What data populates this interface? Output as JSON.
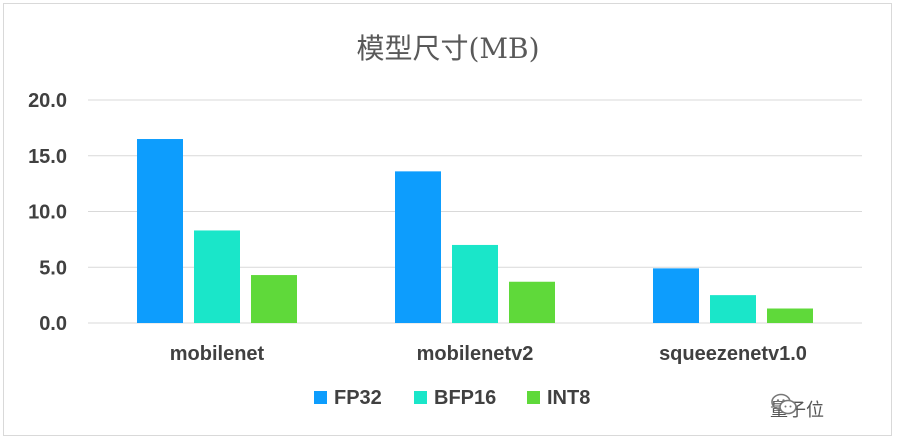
{
  "chart_data": {
    "type": "bar",
    "title": "模型尺寸(MB)",
    "categories": [
      "mobilenet",
      "mobilenetv2",
      "squeezenetv1.0"
    ],
    "series": [
      {
        "name": "FP32",
        "color": "#0d9dfd",
        "values": [
          16.5,
          13.6,
          4.9
        ]
      },
      {
        "name": "BFP16",
        "color": "#1ae6c9",
        "values": [
          8.3,
          7.0,
          2.5
        ]
      },
      {
        "name": "INT8",
        "color": "#5fd93a",
        "values": [
          4.3,
          3.7,
          1.3
        ]
      }
    ],
    "ylim": [
      0,
      20
    ],
    "yticks": [
      "0.0",
      "5.0",
      "10.0",
      "15.0",
      "20.0"
    ],
    "ytick_values": [
      0,
      5,
      10,
      15,
      20
    ],
    "grid": true,
    "legend_position": "bottom"
  },
  "watermark": {
    "icon": "wechat-icon",
    "text": "量子位"
  }
}
